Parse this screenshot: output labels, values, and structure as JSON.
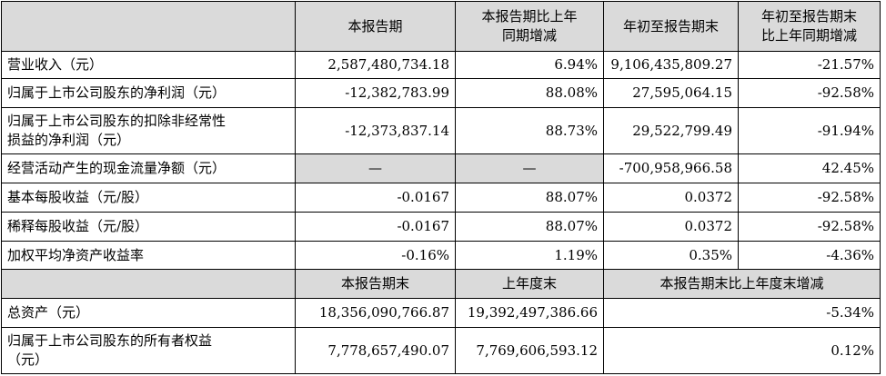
{
  "header": {
    "col1": "本报告期",
    "col2_line1": "本报告期比上年",
    "col2_line2": "同期增减",
    "col3": "年初至报告期末",
    "col4_line1": "年初至报告期末",
    "col4_line2": "比上年同期增减"
  },
  "rows": [
    {
      "label": "营业收入（元）",
      "v1": "2,587,480,734.18",
      "v2": "6.94%",
      "v3": "9,106,435,809.27",
      "v4": "-21.57%"
    },
    {
      "label": "归属于上市公司股东的净利润（元）",
      "v1": "-12,382,783.99",
      "v2": "88.08%",
      "v3": "27,595,064.15",
      "v4": "-92.58%"
    },
    {
      "label_line1": "归属于上市公司股东的扣除非经常性",
      "label_line2": "损益的净利润（元）",
      "v1": "-12,373,837.14",
      "v2": "88.73%",
      "v3": "29,522,799.49",
      "v4": "-91.94%"
    },
    {
      "label": "经营活动产生的现金流量净额（元）",
      "v1": "—",
      "v2": "—",
      "v3": "-700,958,966.58",
      "v4": "42.45%"
    },
    {
      "label": "基本每股收益（元/股）",
      "v1": "-0.0167",
      "v2": "88.07%",
      "v3": "0.0372",
      "v4": "-92.58%"
    },
    {
      "label": "稀释每股收益（元/股）",
      "v1": "-0.0167",
      "v2": "88.07%",
      "v3": "0.0372",
      "v4": "-92.58%"
    },
    {
      "label": "加权平均净资产收益率",
      "v1": "-0.16%",
      "v2": "1.19%",
      "v3": "0.35%",
      "v4": "-4.36%"
    }
  ],
  "header2": {
    "col1": "本报告期末",
    "col2": "上年度末",
    "col3": "本报告期末比上年度末增减"
  },
  "rows2": [
    {
      "label": "总资产（元）",
      "v1": "18,356,090,766.87",
      "v2": "19,392,497,386.66",
      "v3": "-5.34%"
    },
    {
      "label_line1": "归属于上市公司股东的所有者权益",
      "label_line2": "（元）",
      "v1": "7,778,657,490.07",
      "v2": "7,769,606,593.12",
      "v3": "0.12%"
    }
  ]
}
